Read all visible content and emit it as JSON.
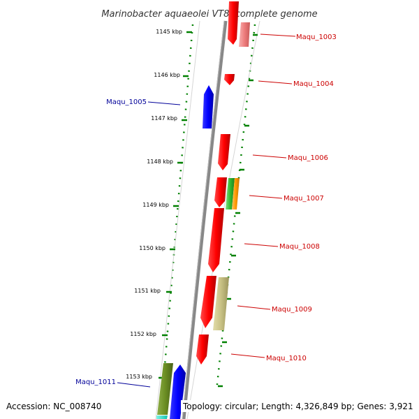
{
  "title": "Marinobacter aquaeolei VT8, complete genome",
  "accession": "Accession: NC_008740",
  "topology": "Topology: circular; Length: 4,326,849 bp; Genes: 3,921",
  "colors": {
    "forward_gene": "#ff0000",
    "reverse_gene": "#0000ff",
    "forward_label": "#cc0000",
    "reverse_label": "#000099",
    "tick": "#008000",
    "backbone": "#808080"
  },
  "ruler": [
    {
      "label": "1145 kbp"
    },
    {
      "label": "1146 kbp"
    },
    {
      "label": "1147 kbp"
    },
    {
      "label": "1148 kbp"
    },
    {
      "label": "1149 kbp"
    },
    {
      "label": "1150 kbp"
    },
    {
      "label": "1151 kbp"
    },
    {
      "label": "1152 kbp"
    },
    {
      "label": "1153 kbp"
    }
  ],
  "gene_labels": [
    {
      "name": "Maqu_1003",
      "strand": "forward"
    },
    {
      "name": "Maqu_1004",
      "strand": "forward"
    },
    {
      "name": "Maqu_1005",
      "strand": "reverse"
    },
    {
      "name": "Maqu_1006",
      "strand": "forward"
    },
    {
      "name": "Maqu_1007",
      "strand": "forward"
    },
    {
      "name": "Maqu_1008",
      "strand": "forward"
    },
    {
      "name": "Maqu_1009",
      "strand": "forward"
    },
    {
      "name": "Maqu_1010",
      "strand": "forward"
    },
    {
      "name": "Maqu_1011",
      "strand": "reverse"
    }
  ]
}
